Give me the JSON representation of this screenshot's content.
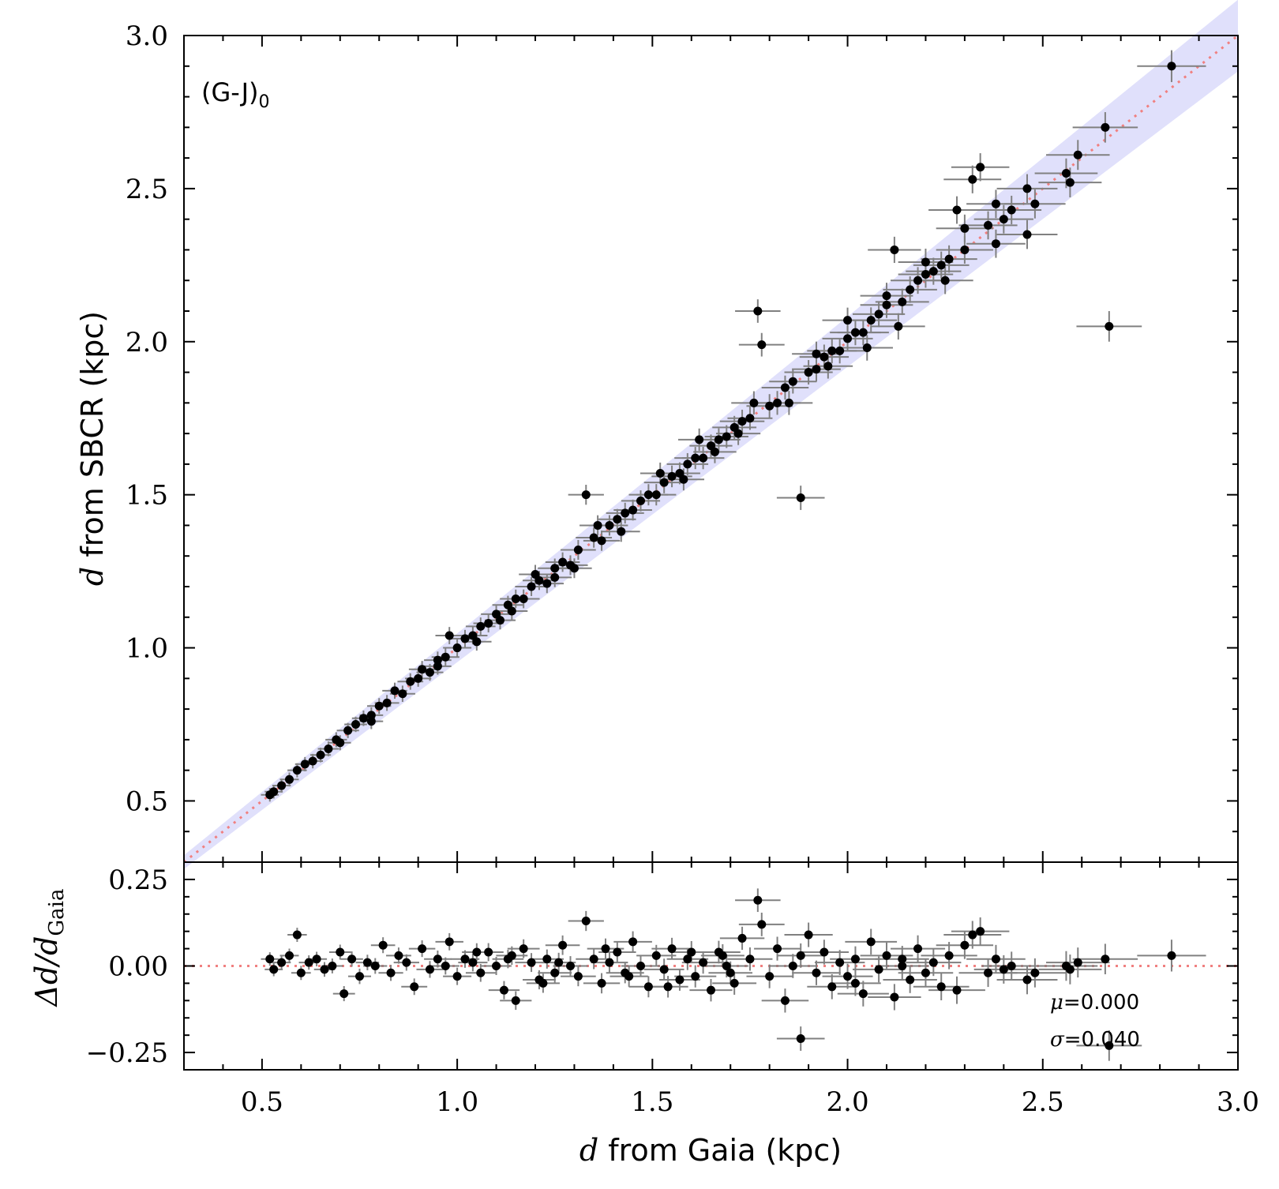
{
  "chart_data": [
    {
      "type": "scatter",
      "panel": "main",
      "annotation_base": "(G-J)",
      "annotation_sub": "0",
      "xlabel_var": "d",
      "xlabel_text": " from Gaia (kpc)",
      "ylabel_var": "d",
      "ylabel_text": " from SBCR (kpc)",
      "xlim": [
        0.3,
        3.0
      ],
      "ylim": [
        0.3,
        3.0
      ],
      "xticks": [
        "0.5",
        "1.0",
        "1.5",
        "2.0",
        "2.5",
        "3.0"
      ],
      "yticks": [
        "0.5",
        "1.0",
        "1.5",
        "2.0",
        "2.5",
        "3.0"
      ],
      "reference_line": "y = x",
      "colors": {
        "points": "#000000",
        "errorbars": "#808080",
        "reference_line": "#f08080",
        "band": "#e0e0fb"
      },
      "series": [
        {
          "points": [
            [
              0.52,
              0.52
            ],
            [
              0.53,
              0.53
            ],
            [
              0.55,
              0.55
            ],
            [
              0.57,
              0.57
            ],
            [
              0.59,
              0.6
            ],
            [
              0.61,
              0.62
            ],
            [
              0.63,
              0.63
            ],
            [
              0.65,
              0.65
            ],
            [
              0.67,
              0.67
            ],
            [
              0.69,
              0.7
            ],
            [
              0.7,
              0.69
            ],
            [
              0.72,
              0.73
            ],
            [
              0.74,
              0.75
            ],
            [
              0.76,
              0.77
            ],
            [
              0.78,
              0.78
            ],
            [
              0.8,
              0.81
            ],
            [
              0.82,
              0.82
            ],
            [
              0.84,
              0.86
            ],
            [
              0.86,
              0.85
            ],
            [
              0.88,
              0.89
            ],
            [
              0.9,
              0.9
            ],
            [
              0.91,
              0.93
            ],
            [
              0.93,
              0.92
            ],
            [
              0.95,
              0.96
            ],
            [
              0.97,
              0.97
            ],
            [
              0.98,
              1.04
            ],
            [
              1.0,
              1.0
            ],
            [
              1.02,
              1.03
            ],
            [
              1.04,
              1.04
            ],
            [
              1.06,
              1.07
            ],
            [
              1.08,
              1.08
            ],
            [
              1.1,
              1.11
            ],
            [
              1.11,
              1.09
            ],
            [
              1.13,
              1.14
            ],
            [
              1.15,
              1.16
            ],
            [
              1.17,
              1.16
            ],
            [
              1.19,
              1.2
            ],
            [
              1.21,
              1.22
            ],
            [
              1.23,
              1.21
            ],
            [
              1.25,
              1.26
            ],
            [
              1.27,
              1.28
            ],
            [
              1.29,
              1.27
            ],
            [
              1.31,
              1.32
            ],
            [
              1.33,
              1.5
            ],
            [
              1.35,
              1.36
            ],
            [
              1.37,
              1.35
            ],
            [
              1.39,
              1.4
            ],
            [
              1.41,
              1.42
            ],
            [
              1.43,
              1.44
            ],
            [
              1.45,
              1.45
            ],
            [
              1.47,
              1.48
            ],
            [
              1.49,
              1.5
            ],
            [
              1.51,
              1.5
            ],
            [
              1.53,
              1.54
            ],
            [
              1.55,
              1.56
            ],
            [
              1.57,
              1.57
            ],
            [
              1.59,
              1.6
            ],
            [
              1.61,
              1.62
            ],
            [
              1.63,
              1.62
            ],
            [
              1.65,
              1.66
            ],
            [
              1.67,
              1.68
            ],
            [
              1.69,
              1.69
            ],
            [
              1.71,
              1.72
            ],
            [
              1.73,
              1.74
            ],
            [
              1.75,
              1.75
            ],
            [
              1.77,
              2.1
            ],
            [
              1.78,
              1.99
            ],
            [
              1.8,
              1.79
            ],
            [
              1.82,
              1.8
            ],
            [
              1.84,
              1.85
            ],
            [
              1.86,
              1.87
            ],
            [
              1.88,
              1.49
            ],
            [
              1.9,
              1.9
            ],
            [
              1.92,
              1.91
            ],
            [
              1.94,
              1.95
            ],
            [
              1.96,
              1.97
            ],
            [
              1.98,
              1.97
            ],
            [
              2.0,
              2.01
            ],
            [
              2.02,
              2.03
            ],
            [
              2.04,
              2.03
            ],
            [
              2.06,
              2.07
            ],
            [
              2.08,
              2.09
            ],
            [
              2.1,
              2.12
            ],
            [
              2.12,
              2.3
            ],
            [
              2.14,
              2.13
            ],
            [
              2.16,
              2.17
            ],
            [
              2.18,
              2.2
            ],
            [
              2.2,
              2.22
            ],
            [
              2.22,
              2.23
            ],
            [
              2.24,
              2.25
            ],
            [
              2.26,
              2.27
            ],
            [
              2.28,
              2.43
            ],
            [
              2.3,
              2.3
            ],
            [
              2.32,
              2.53
            ],
            [
              2.34,
              2.57
            ],
            [
              2.36,
              2.38
            ],
            [
              2.38,
              2.45
            ],
            [
              2.4,
              2.4
            ],
            [
              2.42,
              2.43
            ],
            [
              2.46,
              2.35
            ],
            [
              2.48,
              2.45
            ],
            [
              2.56,
              2.55
            ],
            [
              2.57,
              2.52
            ],
            [
              2.59,
              2.61
            ],
            [
              2.66,
              2.7
            ],
            [
              2.67,
              2.05
            ],
            [
              2.83,
              2.9
            ],
            [
              1.25,
              1.23
            ],
            [
              1.05,
              1.02
            ],
            [
              0.95,
              0.94
            ],
            [
              0.78,
              0.76
            ],
            [
              1.14,
              1.12
            ],
            [
              1.3,
              1.26
            ],
            [
              1.42,
              1.38
            ],
            [
              1.58,
              1.55
            ],
            [
              1.66,
              1.64
            ],
            [
              1.72,
              1.7
            ],
            [
              1.85,
              1.8
            ],
            [
              1.95,
              1.92
            ],
            [
              2.05,
              1.98
            ],
            [
              2.13,
              2.05
            ],
            [
              2.25,
              2.2
            ],
            [
              2.38,
              2.32
            ],
            [
              1.2,
              1.24
            ],
            [
              1.36,
              1.4
            ],
            [
              1.52,
              1.57
            ],
            [
              1.62,
              1.68
            ],
            [
              1.76,
              1.8
            ],
            [
              1.92,
              1.96
            ],
            [
              2.0,
              2.07
            ],
            [
              2.1,
              2.15
            ],
            [
              2.2,
              2.26
            ],
            [
              2.3,
              2.37
            ],
            [
              2.46,
              2.5
            ]
          ]
        }
      ]
    },
    {
      "type": "scatter",
      "panel": "residual",
      "xlabel_var": "d",
      "xlabel_text": " from Gaia (kpc)",
      "ylabel": "Δd/d",
      "ylabel_sub": "Gaia",
      "xlim": [
        0.3,
        3.0
      ],
      "ylim": [
        -0.3,
        0.3
      ],
      "xticks": [
        "0.5",
        "1.0",
        "1.5",
        "2.0",
        "2.5",
        "3.0"
      ],
      "yticks": [
        "−0.25",
        "0.00",
        "0.25"
      ],
      "yticks_values": [
        -0.25,
        0.0,
        0.25
      ],
      "mu_symbol": "μ",
      "mu_text": "=0.000",
      "sigma_symbol": "σ",
      "sigma_text": "=0.040",
      "series": [
        {
          "points": [
            [
              0.52,
              0.02
            ],
            [
              0.53,
              -0.01
            ],
            [
              0.55,
              0.01
            ],
            [
              0.57,
              0.03
            ],
            [
              0.59,
              0.09
            ],
            [
              0.6,
              -0.02
            ],
            [
              0.62,
              0.01
            ],
            [
              0.64,
              0.02
            ],
            [
              0.66,
              -0.01
            ],
            [
              0.68,
              0.0
            ],
            [
              0.7,
              0.04
            ],
            [
              0.71,
              -0.08
            ],
            [
              0.73,
              0.02
            ],
            [
              0.75,
              -0.03
            ],
            [
              0.77,
              0.01
            ],
            [
              0.79,
              0.0
            ],
            [
              0.81,
              0.06
            ],
            [
              0.83,
              -0.02
            ],
            [
              0.85,
              0.03
            ],
            [
              0.87,
              0.01
            ],
            [
              0.89,
              -0.06
            ],
            [
              0.91,
              0.05
            ],
            [
              0.93,
              -0.01
            ],
            [
              0.95,
              0.02
            ],
            [
              0.97,
              0.0
            ],
            [
              0.98,
              0.07
            ],
            [
              1.0,
              -0.03
            ],
            [
              1.02,
              0.02
            ],
            [
              1.04,
              0.01
            ],
            [
              1.06,
              -0.02
            ],
            [
              1.08,
              0.04
            ],
            [
              1.1,
              0.0
            ],
            [
              1.12,
              -0.07
            ],
            [
              1.14,
              0.03
            ],
            [
              1.15,
              -0.1
            ],
            [
              1.17,
              0.05
            ],
            [
              1.19,
              0.01
            ],
            [
              1.21,
              -0.04
            ],
            [
              1.23,
              0.02
            ],
            [
              1.25,
              -0.02
            ],
            [
              1.27,
              0.06
            ],
            [
              1.29,
              0.0
            ],
            [
              1.31,
              -0.03
            ],
            [
              1.33,
              0.13
            ],
            [
              1.35,
              0.02
            ],
            [
              1.37,
              -0.05
            ],
            [
              1.39,
              0.01
            ],
            [
              1.41,
              0.04
            ],
            [
              1.43,
              -0.02
            ],
            [
              1.45,
              0.07
            ],
            [
              1.47,
              0.0
            ],
            [
              1.49,
              -0.06
            ],
            [
              1.51,
              0.03
            ],
            [
              1.53,
              -0.01
            ],
            [
              1.55,
              0.05
            ],
            [
              1.57,
              -0.04
            ],
            [
              1.59,
              0.02
            ],
            [
              1.61,
              -0.03
            ],
            [
              1.63,
              0.01
            ],
            [
              1.65,
              -0.07
            ],
            [
              1.67,
              0.04
            ],
            [
              1.69,
              0.0
            ],
            [
              1.71,
              -0.05
            ],
            [
              1.73,
              0.08
            ],
            [
              1.75,
              0.02
            ],
            [
              1.77,
              0.19
            ],
            [
              1.78,
              0.12
            ],
            [
              1.8,
              -0.03
            ],
            [
              1.82,
              0.05
            ],
            [
              1.84,
              -0.1
            ],
            [
              1.86,
              0.0
            ],
            [
              1.88,
              -0.21
            ],
            [
              1.9,
              0.09
            ],
            [
              1.92,
              -0.02
            ],
            [
              1.94,
              0.04
            ],
            [
              1.96,
              -0.06
            ],
            [
              1.98,
              0.01
            ],
            [
              2.0,
              -0.03
            ],
            [
              2.02,
              0.02
            ],
            [
              2.04,
              -0.08
            ],
            [
              2.06,
              0.07
            ],
            [
              2.08,
              -0.01
            ],
            [
              2.1,
              0.03
            ],
            [
              2.12,
              -0.09
            ],
            [
              2.14,
              0.0
            ],
            [
              2.16,
              -0.04
            ],
            [
              2.18,
              0.05
            ],
            [
              2.2,
              -0.02
            ],
            [
              2.22,
              0.01
            ],
            [
              2.24,
              -0.06
            ],
            [
              2.26,
              0.03
            ],
            [
              2.28,
              -0.07
            ],
            [
              2.3,
              0.06
            ],
            [
              2.32,
              0.09
            ],
            [
              2.34,
              0.1
            ],
            [
              2.36,
              -0.02
            ],
            [
              2.38,
              0.02
            ],
            [
              2.4,
              -0.01
            ],
            [
              2.42,
              0.0
            ],
            [
              2.46,
              -0.04
            ],
            [
              2.48,
              -0.02
            ],
            [
              2.56,
              0.0
            ],
            [
              2.57,
              -0.01
            ],
            [
              2.59,
              0.01
            ],
            [
              2.66,
              0.02
            ],
            [
              2.67,
              -0.23
            ],
            [
              2.83,
              0.03
            ],
            [
              1.13,
              0.02
            ],
            [
              1.26,
              0.01
            ],
            [
              1.44,
              -0.03
            ],
            [
              1.6,
              0.04
            ],
            [
              1.7,
              -0.02
            ],
            [
              1.88,
              0.03
            ],
            [
              2.02,
              -0.05
            ],
            [
              2.14,
              0.02
            ],
            [
              1.05,
              0.04
            ],
            [
              1.22,
              -0.05
            ],
            [
              1.38,
              0.05
            ],
            [
              1.54,
              -0.06
            ],
            [
              1.68,
              0.03
            ]
          ]
        }
      ]
    }
  ]
}
